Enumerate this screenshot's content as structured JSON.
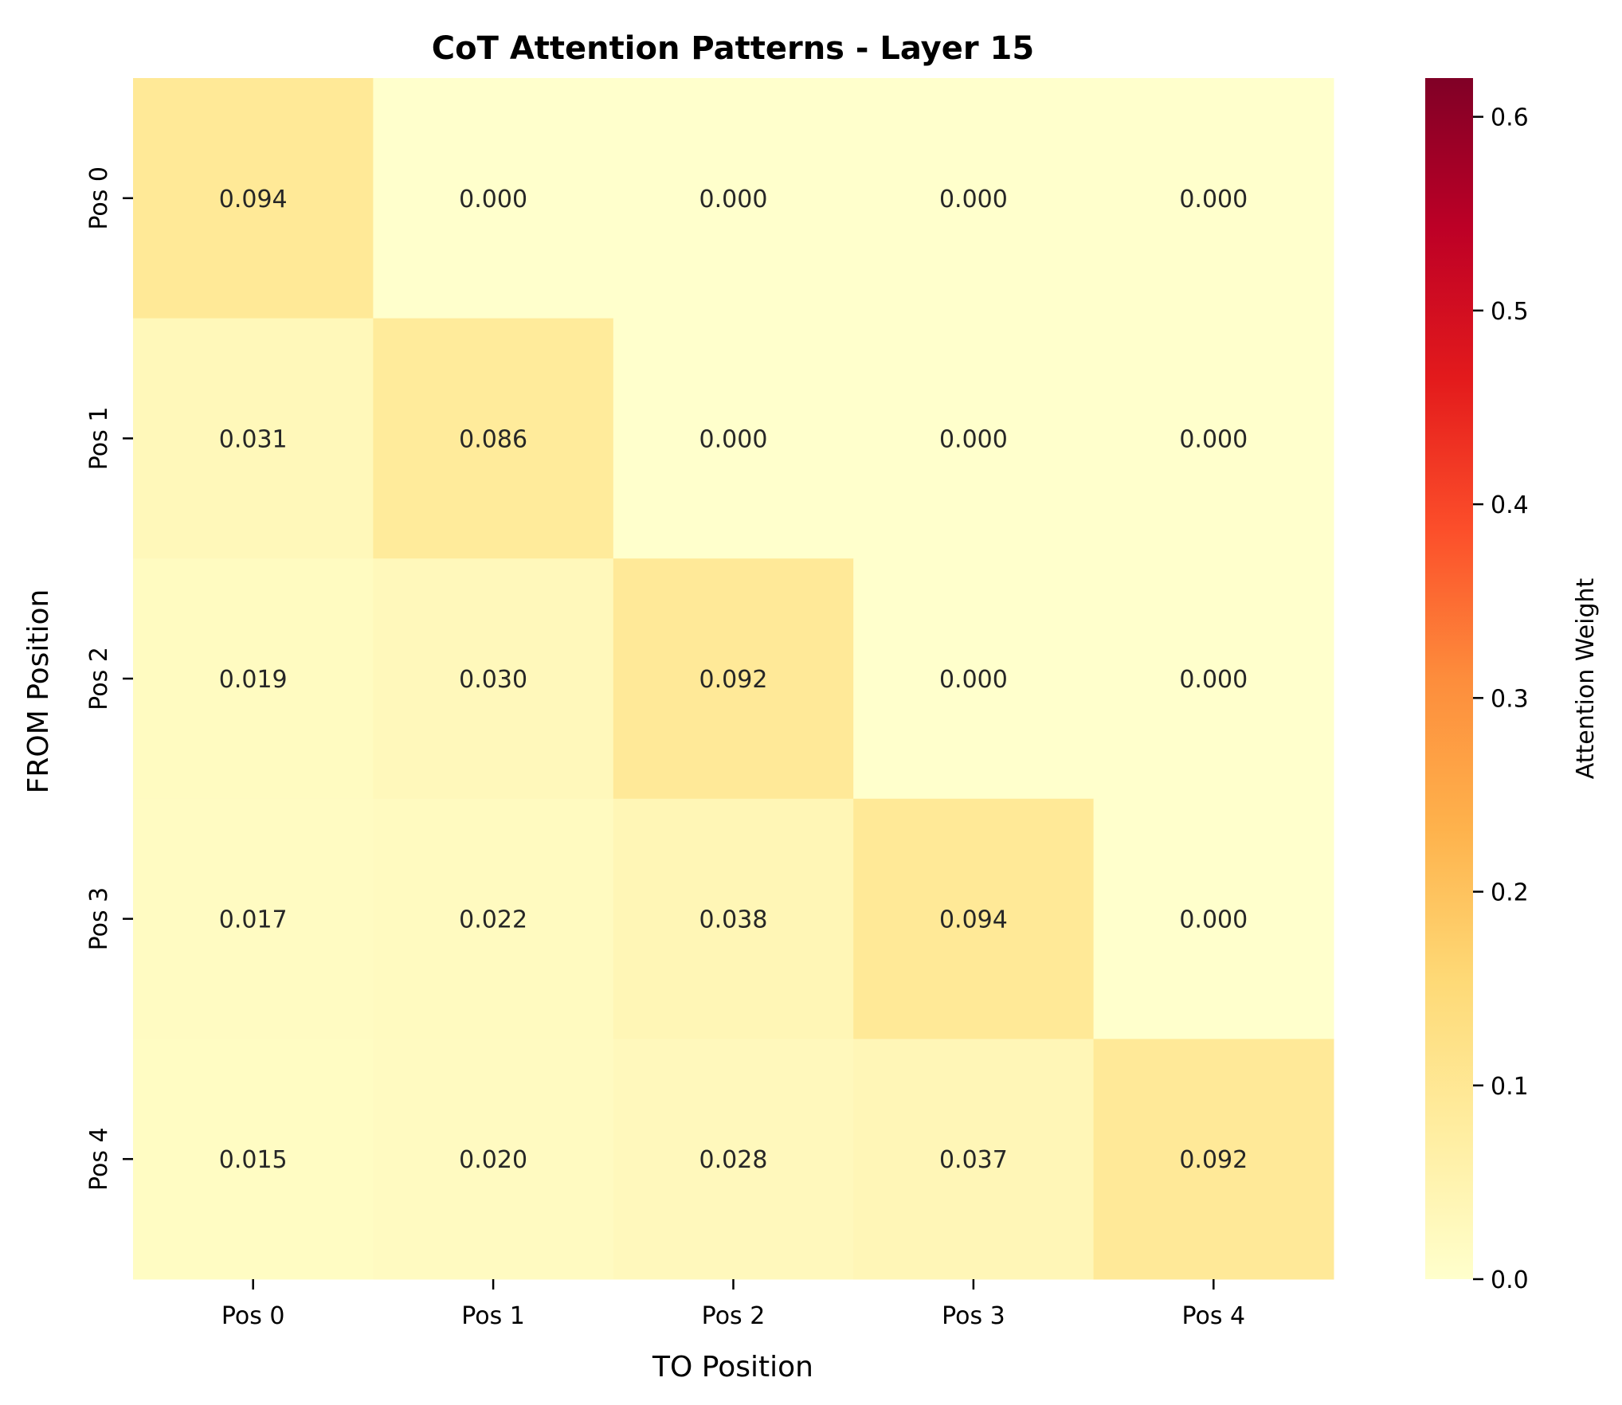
{
  "chart_data": {
    "type": "heatmap",
    "title": "CoT Attention Patterns - Layer 15",
    "xlabel": "TO Position",
    "ylabel": "FROM Position",
    "x_categories": [
      "Pos 0",
      "Pos 1",
      "Pos 2",
      "Pos 3",
      "Pos 4"
    ],
    "y_categories": [
      "Pos 0",
      "Pos 1",
      "Pos 2",
      "Pos 3",
      "Pos 4"
    ],
    "values": [
      [
        0.094,
        0.0,
        0.0,
        0.0,
        0.0
      ],
      [
        0.031,
        0.086,
        0.0,
        0.0,
        0.0
      ],
      [
        0.019,
        0.03,
        0.092,
        0.0,
        0.0
      ],
      [
        0.017,
        0.022,
        0.038,
        0.094,
        0.0
      ],
      [
        0.015,
        0.02,
        0.028,
        0.037,
        0.092
      ]
    ],
    "cell_labels": [
      [
        "0.094",
        "0.000",
        "0.000",
        "0.000",
        "0.000"
      ],
      [
        "0.031",
        "0.086",
        "0.000",
        "0.000",
        "0.000"
      ],
      [
        "0.019",
        "0.030",
        "0.092",
        "0.000",
        "0.000"
      ],
      [
        "0.017",
        "0.022",
        "0.038",
        "0.094",
        "0.000"
      ],
      [
        "0.015",
        "0.020",
        "0.028",
        "0.037",
        "0.092"
      ]
    ],
    "colorbar": {
      "label": "Attention Weight",
      "range": [
        0,
        0.62
      ],
      "ticks": [
        0.0,
        0.1,
        0.2,
        0.3,
        0.4,
        0.5,
        0.6
      ],
      "tick_labels": [
        "0.0",
        "0.1",
        "0.2",
        "0.3",
        "0.4",
        "0.5",
        "0.6"
      ],
      "colormap": "YlOrRd",
      "stops": [
        "#ffffcc",
        "#ffeda0",
        "#fed976",
        "#feb24c",
        "#fd8d3c",
        "#fc4e2a",
        "#e31a1c",
        "#bd0026",
        "#800026"
      ]
    }
  }
}
